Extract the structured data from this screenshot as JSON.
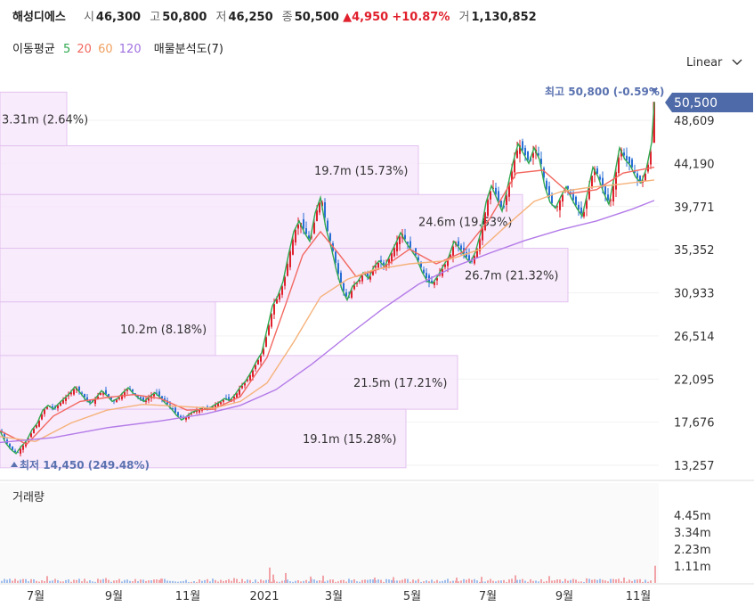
{
  "header": {
    "name": "해성디에스",
    "open_label": "시",
    "open": "46,300",
    "high_label": "고",
    "high": "50,800",
    "low_label": "저",
    "low": "46,250",
    "close_label": "종",
    "close": "50,500",
    "change": "▲4,950",
    "change_pct": "+10.87%",
    "volume_label": "거",
    "volume": "1,130,852"
  },
  "ma_legend": {
    "label": "이동평균",
    "periods": [
      {
        "text": "5",
        "color": "#2fa84f"
      },
      {
        "text": "20",
        "color": "#f2685f"
      },
      {
        "text": "60",
        "color": "#f0a060"
      },
      {
        "text": "120",
        "color": "#a070e0"
      }
    ],
    "volume_profile": "매물분석도(7)"
  },
  "scale_select": {
    "label": "Linear",
    "icon": "chevron-down-icon"
  },
  "colors": {
    "up": "#e0202c",
    "down": "#2a6fd6",
    "profile": "#d7a7e8",
    "current_tag": "#4f6aa8"
  },
  "chart_data": {
    "type": "candlestick",
    "y_ticks": [
      "48,609",
      "44,190",
      "39,771",
      "35,352",
      "30,933",
      "26,514",
      "22,095",
      "17,676",
      "13,257"
    ],
    "y_tick_values": [
      48609,
      44190,
      39771,
      35352,
      30933,
      26514,
      22095,
      17676,
      13257
    ],
    "x_ticks": [
      "7월",
      "9월",
      "11월",
      "2021",
      "3월",
      "5월",
      "7월",
      "9월",
      "11월"
    ],
    "current_price": "50,500",
    "max_label": "최고 50,800 (-0.59%)",
    "min_label": "최저 14,450 (249.48%)",
    "volume_pane_title": "거래량",
    "volume_ticks": [
      "4.45m",
      "3.34m",
      "2.23m",
      "1.11m"
    ],
    "volume_profile": [
      {
        "label": "3.31m (2.64%)",
        "from": 46000,
        "to": 51500
      },
      {
        "label": "19.7m (15.73%)",
        "from": 41000,
        "to": 46000
      },
      {
        "label": "24.6m (19.63%)",
        "from": 35500,
        "to": 41000
      },
      {
        "label": "26.7m (21.32%)",
        "from": 30000,
        "to": 35500
      },
      {
        "label": "10.2m (8.18%)",
        "from": 24500,
        "to": 30000
      },
      {
        "label": "21.5m (17.21%)",
        "from": 19000,
        "to": 24500
      },
      {
        "label": "19.1m (15.28%)",
        "from": 13000,
        "to": 19000
      }
    ],
    "price_path": [
      [
        0,
        16800
      ],
      [
        6,
        15600
      ],
      [
        12,
        14900
      ],
      [
        18,
        14450
      ],
      [
        24,
        15200
      ],
      [
        30,
        15800
      ],
      [
        36,
        16900
      ],
      [
        42,
        17600
      ],
      [
        48,
        18900
      ],
      [
        54,
        19400
      ],
      [
        60,
        19000
      ],
      [
        66,
        19600
      ],
      [
        72,
        20100
      ],
      [
        78,
        20600
      ],
      [
        84,
        21300
      ],
      [
        90,
        20700
      ],
      [
        96,
        20000
      ],
      [
        102,
        19600
      ],
      [
        108,
        20200
      ],
      [
        114,
        20900
      ],
      [
        120,
        20400
      ],
      [
        126,
        19800
      ],
      [
        132,
        20100
      ],
      [
        138,
        20700
      ],
      [
        144,
        21200
      ],
      [
        150,
        20600
      ],
      [
        156,
        20100
      ],
      [
        162,
        19800
      ],
      [
        168,
        20300
      ],
      [
        174,
        20700
      ],
      [
        180,
        20200
      ],
      [
        186,
        19600
      ],
      [
        192,
        19100
      ],
      [
        198,
        18400
      ],
      [
        204,
        17900
      ],
      [
        210,
        18300
      ],
      [
        216,
        18700
      ],
      [
        222,
        18900
      ],
      [
        228,
        19200
      ],
      [
        234,
        19000
      ],
      [
        240,
        19400
      ],
      [
        246,
        19700
      ],
      [
        252,
        20100
      ],
      [
        258,
        19900
      ],
      [
        264,
        20500
      ],
      [
        270,
        21300
      ],
      [
        276,
        21900
      ],
      [
        282,
        22800
      ],
      [
        288,
        23900
      ],
      [
        294,
        24800
      ],
      [
        300,
        27200
      ],
      [
        306,
        29600
      ],
      [
        312,
        30600
      ],
      [
        318,
        32100
      ],
      [
        324,
        34800
      ],
      [
        330,
        37200
      ],
      [
        336,
        38300
      ],
      [
        342,
        37100
      ],
      [
        348,
        36200
      ],
      [
        354,
        39100
      ],
      [
        360,
        40700
      ],
      [
        366,
        37600
      ],
      [
        372,
        35600
      ],
      [
        378,
        33200
      ],
      [
        384,
        31300
      ],
      [
        390,
        30200
      ],
      [
        396,
        31600
      ],
      [
        402,
        32100
      ],
      [
        408,
        33000
      ],
      [
        414,
        32400
      ],
      [
        420,
        33600
      ],
      [
        426,
        34200
      ],
      [
        432,
        33600
      ],
      [
        438,
        34800
      ],
      [
        444,
        35900
      ],
      [
        450,
        37100
      ],
      [
        456,
        36100
      ],
      [
        462,
        35300
      ],
      [
        468,
        34500
      ],
      [
        474,
        33100
      ],
      [
        480,
        32100
      ],
      [
        486,
        31900
      ],
      [
        492,
        32700
      ],
      [
        498,
        33700
      ],
      [
        504,
        34600
      ],
      [
        510,
        36200
      ],
      [
        516,
        35500
      ],
      [
        522,
        34700
      ],
      [
        528,
        34000
      ],
      [
        534,
        35100
      ],
      [
        540,
        37100
      ],
      [
        546,
        40200
      ],
      [
        552,
        41900
      ],
      [
        558,
        40600
      ],
      [
        564,
        39300
      ],
      [
        570,
        41700
      ],
      [
        576,
        44200
      ],
      [
        582,
        46200
      ],
      [
        588,
        45200
      ],
      [
        594,
        44200
      ],
      [
        600,
        45800
      ],
      [
        606,
        44600
      ],
      [
        612,
        41800
      ],
      [
        618,
        40200
      ],
      [
        624,
        39600
      ],
      [
        630,
        40800
      ],
      [
        636,
        41800
      ],
      [
        642,
        40600
      ],
      [
        648,
        39600
      ],
      [
        654,
        38800
      ],
      [
        660,
        41200
      ],
      [
        666,
        43800
      ],
      [
        672,
        42800
      ],
      [
        678,
        41200
      ],
      [
        684,
        40000
      ],
      [
        690,
        42800
      ],
      [
        696,
        45800
      ],
      [
        702,
        44600
      ],
      [
        708,
        44000
      ],
      [
        714,
        42800
      ],
      [
        720,
        42200
      ],
      [
        726,
        43600
      ],
      [
        732,
        46300
      ],
      [
        735,
        50500
      ]
    ],
    "ma_paths": {
      "ma20": [
        [
          0,
          16800
        ],
        [
          30,
          15400
        ],
        [
          60,
          18300
        ],
        [
          90,
          19800
        ],
        [
          120,
          20200
        ],
        [
          150,
          20500
        ],
        [
          180,
          20100
        ],
        [
          210,
          18900
        ],
        [
          240,
          19000
        ],
        [
          270,
          20300
        ],
        [
          300,
          24300
        ],
        [
          320,
          29500
        ],
        [
          340,
          34800
        ],
        [
          360,
          37200
        ],
        [
          380,
          35000
        ],
        [
          400,
          32600
        ],
        [
          430,
          33500
        ],
        [
          460,
          35400
        ],
        [
          490,
          33900
        ],
        [
          520,
          35100
        ],
        [
          550,
          38500
        ],
        [
          580,
          43200
        ],
        [
          610,
          43500
        ],
        [
          640,
          41100
        ],
        [
          670,
          41500
        ],
        [
          700,
          43200
        ],
        [
          735,
          43800
        ]
      ],
      "ma60": [
        [
          0,
          16200
        ],
        [
          40,
          15700
        ],
        [
          80,
          17600
        ],
        [
          120,
          18900
        ],
        [
          160,
          19500
        ],
        [
          200,
          19300
        ],
        [
          240,
          19100
        ],
        [
          270,
          19800
        ],
        [
          300,
          21700
        ],
        [
          330,
          25900
        ],
        [
          360,
          30500
        ],
        [
          390,
          32300
        ],
        [
          420,
          33300
        ],
        [
          460,
          33900
        ],
        [
          500,
          34200
        ],
        [
          540,
          35400
        ],
        [
          570,
          37900
        ],
        [
          600,
          40300
        ],
        [
          630,
          41300
        ],
        [
          660,
          41700
        ],
        [
          700,
          42100
        ],
        [
          735,
          42500
        ]
      ],
      "ma120": [
        [
          0,
          15600
        ],
        [
          60,
          16100
        ],
        [
          120,
          17100
        ],
        [
          180,
          17800
        ],
        [
          230,
          18500
        ],
        [
          270,
          19400
        ],
        [
          310,
          21000
        ],
        [
          350,
          23600
        ],
        [
          390,
          26500
        ],
        [
          430,
          29300
        ],
        [
          470,
          31800
        ],
        [
          510,
          33600
        ],
        [
          550,
          35000
        ],
        [
          590,
          36300
        ],
        [
          630,
          37400
        ],
        [
          670,
          38300
        ],
        [
          710,
          39500
        ],
        [
          735,
          40400
        ]
      ]
    },
    "volume_spikes": [
      [
        52,
        0.45
      ],
      [
        118,
        0.32
      ],
      [
        180,
        0.28
      ],
      [
        262,
        0.32
      ],
      [
        302,
        1.01
      ],
      [
        306,
        0.55
      ],
      [
        320,
        0.65
      ],
      [
        348,
        0.42
      ],
      [
        362,
        0.48
      ],
      [
        420,
        0.35
      ],
      [
        441,
        0.38
      ],
      [
        512,
        0.35
      ],
      [
        540,
        0.4
      ],
      [
        578,
        0.5
      ],
      [
        616,
        0.45
      ],
      [
        658,
        0.3
      ],
      [
        700,
        0.35
      ],
      [
        735,
        1.13
      ]
    ]
  }
}
